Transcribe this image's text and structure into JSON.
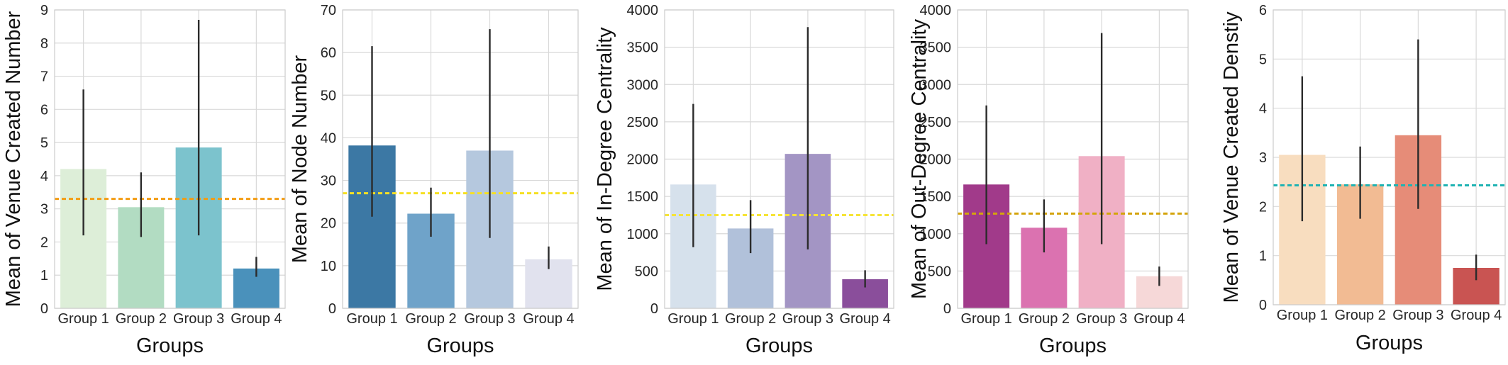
{
  "chart_data": [
    {
      "type": "bar",
      "title": "",
      "xlabel": "Groups",
      "ylabel": "Mean of Venue Created Number",
      "categories": [
        "Group 1",
        "Group 2",
        "Group 3",
        "Group 4"
      ],
      "values": [
        4.2,
        3.05,
        4.85,
        1.2
      ],
      "error_low": [
        2.2,
        2.15,
        2.2,
        0.95
      ],
      "error_high": [
        6.6,
        4.1,
        8.7,
        1.55
      ],
      "bar_colors": [
        "#ddeed8",
        "#b2dcc2",
        "#7cc3cd",
        "#4a91bb"
      ],
      "mean_line": 3.3,
      "mean_line_color": "#f39c12",
      "ylim": [
        0,
        9
      ],
      "yticks": [
        0,
        1,
        2,
        3,
        4,
        5,
        6,
        7,
        8,
        9
      ],
      "ytick_labels": [
        "0",
        "1",
        "2",
        "3",
        "4",
        "5",
        "6",
        "7",
        "8",
        "9"
      ]
    },
    {
      "type": "bar",
      "title": "",
      "xlabel": "Groups",
      "ylabel": "Mean of Node Number",
      "categories": [
        "Group 1",
        "Group 2",
        "Group 3",
        "Group 4"
      ],
      "values": [
        38.2,
        22.2,
        37.0,
        11.5
      ],
      "error_low": [
        21.5,
        16.8,
        16.5,
        9.2
      ],
      "error_high": [
        61.5,
        28.3,
        65.5,
        14.5
      ],
      "bar_colors": [
        "#3c78a4",
        "#6fa3c9",
        "#b5c8de",
        "#e1e2ee"
      ],
      "mean_line": 27.0,
      "mean_line_color": "#f6e024",
      "ylim": [
        0,
        70
      ],
      "yticks": [
        0,
        10,
        20,
        30,
        40,
        50,
        60,
        70
      ],
      "ytick_labels": [
        "0",
        "10",
        "20",
        "30",
        "40",
        "50",
        "60",
        "70"
      ]
    },
    {
      "type": "bar",
      "title": "",
      "xlabel": "Groups",
      "ylabel": "Mean of In-Degree Centrality",
      "categories": [
        "Group 1",
        "Group 2",
        "Group 3",
        "Group 4"
      ],
      "values": [
        1660,
        1070,
        2070,
        390
      ],
      "error_low": [
        820,
        740,
        790,
        280
      ],
      "error_high": [
        2740,
        1450,
        3770,
        510
      ],
      "bar_colors": [
        "#d6e1ec",
        "#b1c1da",
        "#a395c4",
        "#8a4e9b"
      ],
      "mean_line": 1250,
      "mean_line_color": "#f6e436",
      "ylim": [
        0,
        4000
      ],
      "yticks": [
        0,
        500,
        1000,
        1500,
        2000,
        2500,
        3000,
        3500,
        4000
      ],
      "ytick_labels": [
        "0",
        "500",
        "1000",
        "1500",
        "2000",
        "2500",
        "3000",
        "3500",
        "4000"
      ]
    },
    {
      "type": "bar",
      "title": "",
      "xlabel": "Groups",
      "ylabel": "Mean of Out-Degree Centrality",
      "categories": [
        "Group 1",
        "Group 2",
        "Group 3",
        "Group 4"
      ],
      "values": [
        1660,
        1080,
        2040,
        430
      ],
      "error_low": [
        860,
        750,
        860,
        300
      ],
      "error_high": [
        2720,
        1460,
        3690,
        560
      ],
      "bar_colors": [
        "#a13a8a",
        "#db72b0",
        "#f0b0c5",
        "#f6d8d8"
      ],
      "mean_line": 1270,
      "mean_line_color": "#d4a40c",
      "ylim": [
        0,
        4000
      ],
      "yticks": [
        0,
        500,
        1000,
        1500,
        2000,
        2500,
        3000,
        3500,
        4000
      ],
      "ytick_labels": [
        "0",
        "500",
        "1000",
        "1500",
        "2000",
        "2500",
        "3000",
        "3500",
        "4000"
      ]
    },
    {
      "type": "bar",
      "title": "",
      "xlabel": "Groups",
      "ylabel": "Mean of Venue Created Denstiy",
      "categories": [
        "Group 1",
        "Group 2",
        "Group 3",
        "Group 4"
      ],
      "values": [
        3.05,
        2.45,
        3.45,
        0.75
      ],
      "error_low": [
        1.7,
        1.75,
        1.95,
        0.5
      ],
      "error_high": [
        4.65,
        3.22,
        5.4,
        1.02
      ],
      "bar_colors": [
        "#f8ddbf",
        "#f2bb93",
        "#e68c78",
        "#c95452"
      ],
      "mean_line": 2.43,
      "mean_line_color": "#1fb3b3",
      "ylim": [
        0,
        6
      ],
      "yticks": [
        0,
        1,
        2,
        3,
        4,
        5,
        6
      ],
      "ytick_labels": [
        "0",
        "1",
        "2",
        "3",
        "4",
        "5",
        "6"
      ]
    }
  ]
}
